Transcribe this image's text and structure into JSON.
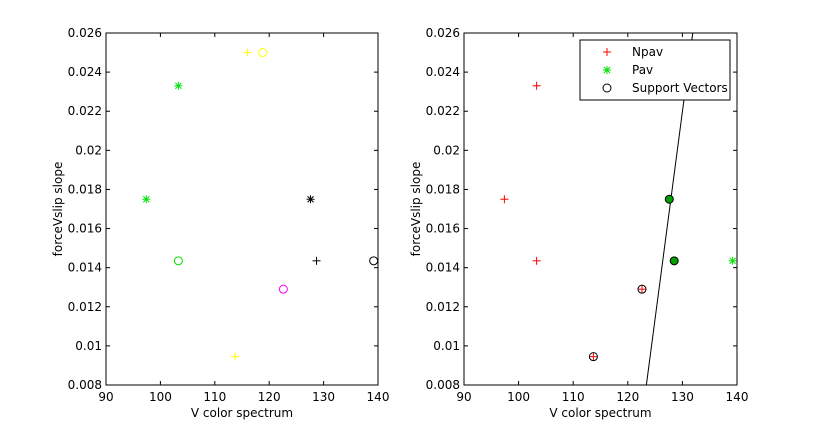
{
  "chart_data": [
    {
      "type": "scatter",
      "xlabel": "V color spectrum",
      "ylabel": "forceVslip slope",
      "xlim": [
        90,
        140
      ],
      "ylim": [
        0.008,
        0.026
      ],
      "xticks": [
        "90",
        "100",
        "110",
        "120",
        "130",
        "140"
      ],
      "yticks": [
        "0.008",
        "0.01",
        "0.012",
        "0.014",
        "0.016",
        "0.018",
        "0.02",
        "0.022",
        "0.024",
        "0.026"
      ],
      "points": [
        {
          "x": 103.3,
          "y": 0.0233,
          "marker": "star",
          "color": "#00e000"
        },
        {
          "x": 97.4,
          "y": 0.0175,
          "marker": "star",
          "color": "#00e000"
        },
        {
          "x": 103.3,
          "y": 0.01435,
          "marker": "circle",
          "color": "#00e000"
        },
        {
          "x": 116.0,
          "y": 0.025,
          "marker": "plus",
          "color": "#ffff00"
        },
        {
          "x": 118.8,
          "y": 0.025,
          "marker": "circle",
          "color": "#ffff00"
        },
        {
          "x": 113.7,
          "y": 0.00945,
          "marker": "plus",
          "color": "#ffff00"
        },
        {
          "x": 122.6,
          "y": 0.0129,
          "marker": "circle",
          "color": "#ff00ff"
        },
        {
          "x": 127.6,
          "y": 0.0175,
          "marker": "star",
          "color": "#000000"
        },
        {
          "x": 128.7,
          "y": 0.01435,
          "marker": "plus",
          "color": "#000000"
        },
        {
          "x": 139.2,
          "y": 0.01435,
          "marker": "circle",
          "color": "#000000"
        }
      ]
    },
    {
      "type": "scatter",
      "xlabel": "V color spectrum",
      "ylabel": "forceVslip slope",
      "xlim": [
        90,
        140
      ],
      "ylim": [
        0.008,
        0.026
      ],
      "xticks": [
        "90",
        "100",
        "110",
        "120",
        "130",
        "140"
      ],
      "yticks": [
        "0.008",
        "0.01",
        "0.012",
        "0.014",
        "0.016",
        "0.018",
        "0.02",
        "0.022",
        "0.024",
        "0.026"
      ],
      "legend": {
        "position": "top-right",
        "entries": [
          {
            "label": "Npav",
            "marker": "plus",
            "color": "#ff0000"
          },
          {
            "label": "Pav",
            "marker": "star",
            "color": "#00e000"
          },
          {
            "label": "Support Vectors",
            "marker": "circle",
            "color": "#000000"
          }
        ]
      },
      "series": [
        {
          "name": "Npav",
          "marker": "plus",
          "color": "#ff0000",
          "x": [
            103.3,
            97.4,
            103.3,
            113.7,
            122.6
          ],
          "y": [
            0.0233,
            0.0175,
            0.01435,
            0.00945,
            0.0129
          ]
        },
        {
          "name": "Pav",
          "marker": "star",
          "color": "#00e000",
          "x": [
            127.6,
            128.5,
            139.2
          ],
          "y": [
            0.0175,
            0.01435,
            0.01435
          ]
        },
        {
          "name": "Support Vectors",
          "marker": "circle",
          "color": "#000000",
          "x": [
            113.7,
            122.6,
            127.6,
            128.5
          ],
          "y": [
            0.00945,
            0.0129,
            0.0175,
            0.01435
          ]
        }
      ],
      "support_vector_fill": "#00a000",
      "support_vector_fill_indices": [
        2,
        3
      ],
      "boundary_line": {
        "color": "#000000",
        "x": [
          123.4,
          131.9
        ],
        "y": [
          0.008,
          0.026
        ]
      }
    }
  ]
}
